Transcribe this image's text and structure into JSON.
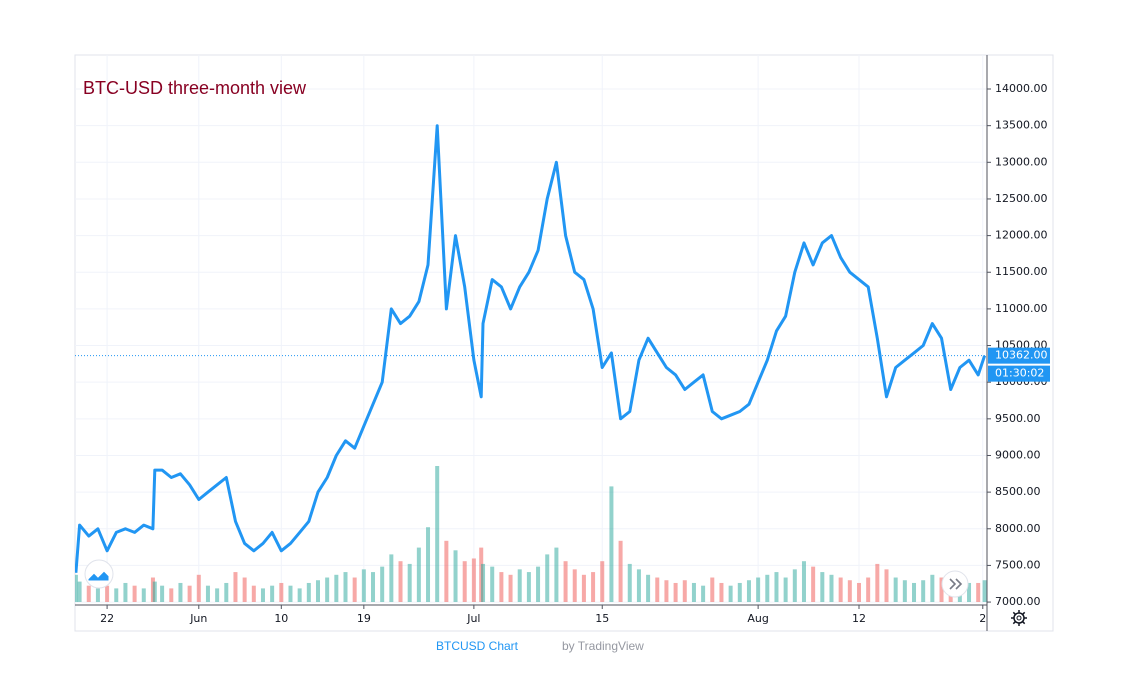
{
  "chart_data": {
    "type": "line",
    "title": "BTC-USD three-month view",
    "x": [
      -3.4,
      -3,
      -2,
      -1,
      0,
      1,
      2,
      3,
      4,
      5,
      5.2,
      6,
      7,
      8,
      9,
      10,
      11,
      12,
      13,
      14,
      15,
      16,
      17,
      18,
      19,
      20,
      21,
      22,
      23,
      24,
      25,
      26,
      27,
      28,
      29,
      30,
      31,
      32,
      33,
      34,
      35,
      36,
      37,
      38,
      39,
      40,
      40.8,
      41,
      42,
      43,
      44,
      45,
      46,
      47,
      48,
      49,
      50,
      51,
      52,
      53,
      54,
      55,
      56,
      57,
      58,
      59,
      60,
      61,
      62,
      63,
      64,
      65,
      66,
      67,
      68,
      69,
      70,
      71,
      72,
      73,
      74,
      75,
      76,
      77,
      78,
      79,
      80,
      81,
      82,
      83,
      84,
      85,
      86,
      87,
      88,
      89,
      90,
      91,
      92,
      93,
      94,
      95,
      95.7
    ],
    "series": [
      {
        "name": "BTCUSD",
        "color": "#2196f3",
        "values": [
          7400,
          8050,
          7900,
          8000,
          7700,
          7950,
          8000,
          7950,
          8050,
          8000,
          8800,
          8800,
          8700,
          8750,
          8600,
          8400,
          8500,
          8600,
          8700,
          8100,
          7800,
          7700,
          7800,
          7950,
          7700,
          7800,
          7950,
          8100,
          8500,
          8700,
          9000,
          9200,
          9100,
          9400,
          9700,
          10000,
          11000,
          10800,
          10900,
          11100,
          11600,
          13500,
          11000,
          12000,
          11300,
          10300,
          9800,
          10800,
          11400,
          11300,
          11000,
          11300,
          11500,
          11800,
          12500,
          13000,
          12000,
          11500,
          11400,
          11000,
          10200,
          10400,
          9500,
          9600,
          10300,
          10600,
          10400,
          10200,
          10100,
          9900,
          10000,
          10100,
          9600,
          9500,
          9550,
          9600,
          9700,
          10000,
          10300,
          10700,
          10900,
          11500,
          11900,
          11600,
          11900,
          12000,
          11700,
          11500,
          11400,
          11300,
          10600,
          9800,
          10200,
          10300,
          10400,
          10500,
          10800,
          10600,
          9900,
          10200,
          10300,
          10100,
          10362
        ]
      }
    ],
    "volume": [
      20,
      15,
      12,
      10,
      12,
      10,
      14,
      12,
      10,
      18,
      15,
      12,
      10,
      14,
      12,
      20,
      12,
      10,
      14,
      22,
      18,
      12,
      10,
      12,
      14,
      12,
      10,
      14,
      16,
      18,
      20,
      22,
      18,
      24,
      22,
      26,
      35,
      30,
      28,
      40,
      55,
      100,
      45,
      38,
      30,
      32,
      40,
      28,
      26,
      22,
      20,
      24,
      22,
      26,
      35,
      40,
      30,
      24,
      20,
      22,
      30,
      85,
      45,
      28,
      24,
      20,
      18,
      16,
      14,
      16,
      14,
      12,
      18,
      14,
      12,
      14,
      16,
      18,
      20,
      22,
      18,
      24,
      30,
      26,
      22,
      20,
      18,
      16,
      14,
      18,
      28,
      24,
      18,
      16,
      14,
      16,
      20,
      18,
      22,
      16,
      14,
      14,
      16
    ],
    "xlim": [
      -3.5,
      95.96
    ],
    "xticks": [
      {
        "value": 0,
        "label": "22"
      },
      {
        "value": 10,
        "label": "Jun"
      },
      {
        "value": 19,
        "label": "10"
      },
      {
        "value": 28,
        "label": "19"
      },
      {
        "value": 40,
        "label": "Jul"
      },
      {
        "value": 54,
        "label": "15"
      },
      {
        "value": 71,
        "label": "Aug"
      },
      {
        "value": 82,
        "label": "12"
      },
      {
        "value": 95.5,
        "label": "2"
      }
    ],
    "ylim": [
      6960,
      14464
    ],
    "yticks": [
      {
        "value": 7000,
        "label": "7000.00"
      },
      {
        "value": 7500,
        "label": "7500.00"
      },
      {
        "value": 8000,
        "label": "8000.00"
      },
      {
        "value": 8500,
        "label": "8500.00"
      },
      {
        "value": 9000,
        "label": "9000.00"
      },
      {
        "value": 9500,
        "label": "9500.00"
      },
      {
        "value": 10000,
        "label": "10000.00"
      },
      {
        "value": 10500,
        "label": "10500.00"
      },
      {
        "value": 11000,
        "label": "11000.00"
      },
      {
        "value": 11500,
        "label": "11500.00"
      },
      {
        "value": 12000,
        "label": "12000.00"
      },
      {
        "value": 12500,
        "label": "12500.00"
      },
      {
        "value": 13000,
        "label": "13000.00"
      },
      {
        "value": 13500,
        "label": "13500.00"
      },
      {
        "value": 14000,
        "label": "14000.00"
      }
    ],
    "grid": true,
    "last_price": {
      "value": 10362,
      "label": "10362.00"
    },
    "countdown": "01:30:02"
  },
  "footer": {
    "symbol": "BTCUSD Chart",
    "by": "by TradingView"
  }
}
